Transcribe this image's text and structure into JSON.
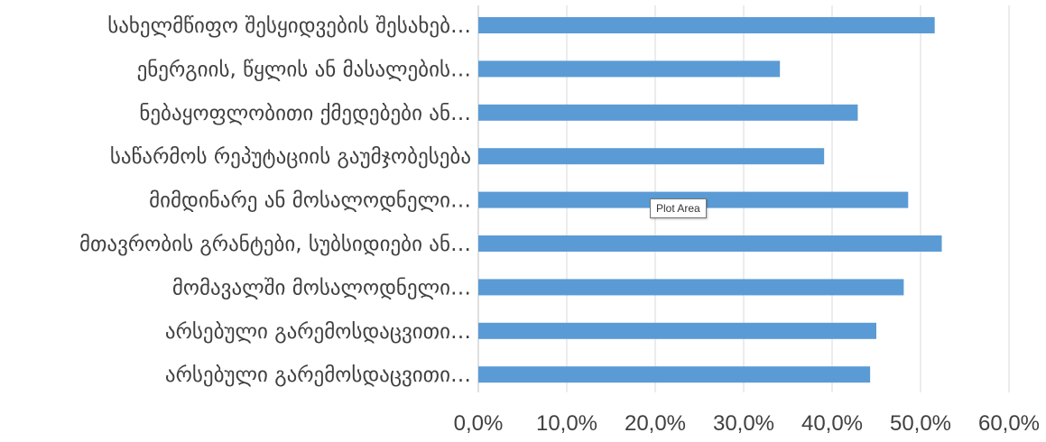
{
  "chart_data": {
    "type": "bar",
    "orientation": "horizontal",
    "categories": [
      "სახელმწიფო შესყიდვების შესახებ…",
      "ენერგიის, წყლის ან მასალების…",
      "ნებაყოფლობითი ქმედებები ან…",
      "საწარმოს რეპუტაციის გაუმჯობესება",
      "მიმდინარე ან მოსალოდნელი…",
      "მთავრობის გრანტები, სუბსიდიები ან…",
      "მომავალში მოსალოდნელი…",
      "არსებული გარემოსდაცვითი…",
      "არსებული გარემოსდაცვითი…"
    ],
    "values": [
      51.6,
      34.1,
      42.9,
      39.1,
      48.6,
      52.4,
      48.1,
      45.0,
      44.3
    ],
    "xlim": [
      0,
      60
    ],
    "xticks": [
      "0,0%",
      "10,0%",
      "20,0%",
      "30,0%",
      "40,0%",
      "50,0%",
      "60,0%"
    ],
    "grid": true,
    "bar_color": "#5b9bd5"
  },
  "tooltip": {
    "text": "Plot Area"
  }
}
